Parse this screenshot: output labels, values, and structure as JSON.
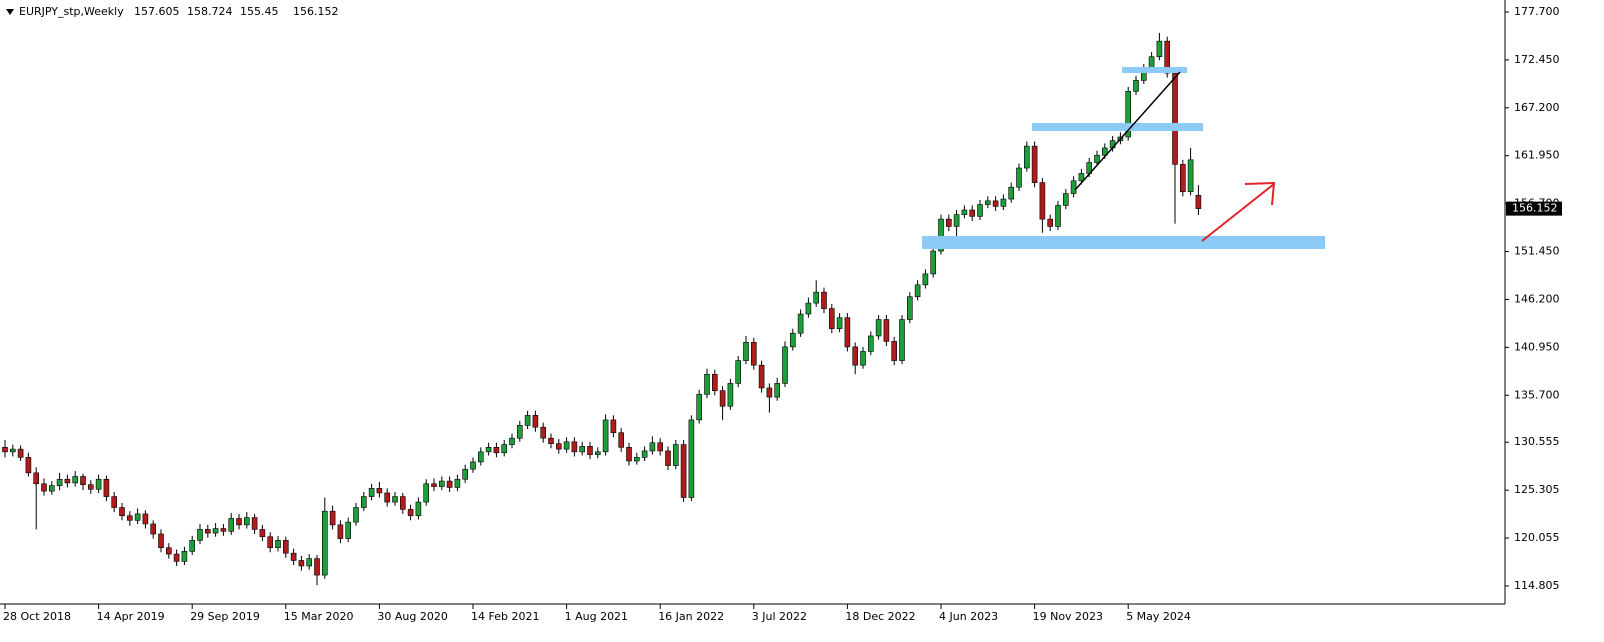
{
  "chart_data": {
    "type": "candlestick",
    "title": "EURJPY_stp,Weekly",
    "up_color": "#1f9d3a",
    "down_color": "#b01c1c",
    "ylim": [
      112.83,
      179.01
    ],
    "yticks": [
      {
        "value": 177.7,
        "label": "177.700"
      },
      {
        "value": 172.45,
        "label": "172.450"
      },
      {
        "value": 167.2,
        "label": "167.200"
      },
      {
        "value": 161.95,
        "label": "161.950"
      },
      {
        "value": 156.7,
        "label": "156.700"
      },
      {
        "value": 151.45,
        "label": "151.450"
      },
      {
        "value": 146.2,
        "label": "146.200"
      },
      {
        "value": 140.95,
        "label": "140.950"
      },
      {
        "value": 135.7,
        "label": "135.700"
      },
      {
        "value": 130.555,
        "label": "130.555"
      },
      {
        "value": 125.305,
        "label": "125.305"
      },
      {
        "value": 120.055,
        "label": "120.055"
      },
      {
        "value": 114.805,
        "label": "114.805"
      }
    ],
    "xticks": [
      {
        "value": 0,
        "label": "28 Oct 2018"
      },
      {
        "value": 12,
        "label": "14 Apr 2019"
      },
      {
        "value": 24,
        "label": "29 Sep 2019"
      },
      {
        "value": 36,
        "label": "15 Mar 2020"
      },
      {
        "value": 48,
        "label": "30 Aug 2020"
      },
      {
        "value": 60,
        "label": "14 Feb 2021"
      },
      {
        "value": 72,
        "label": "1 Aug 2021"
      },
      {
        "value": 84,
        "label": "16 Jan 2022"
      },
      {
        "value": 96,
        "label": "3 Jul 2022"
      },
      {
        "value": 108,
        "label": "18 Dec 2022"
      },
      {
        "value": 120,
        "label": "4 Jun 2023"
      },
      {
        "value": 132,
        "label": "19 Nov 2023"
      },
      {
        "value": 144,
        "label": "5 May 2024"
      }
    ],
    "candles": [
      [
        130.0,
        130.8,
        128.9,
        129.5
      ],
      [
        129.5,
        130.3,
        129.0,
        129.8
      ],
      [
        129.8,
        130.2,
        128.5,
        128.9
      ],
      [
        128.9,
        129.4,
        126.8,
        127.2
      ],
      [
        127.2,
        127.8,
        121.0,
        126.0
      ],
      [
        126.0,
        126.6,
        124.7,
        125.2
      ],
      [
        125.2,
        126.3,
        124.8,
        125.8
      ],
      [
        125.8,
        127.2,
        125.3,
        126.5
      ],
      [
        126.5,
        127.0,
        125.6,
        126.1
      ],
      [
        126.1,
        127.4,
        125.7,
        126.8
      ],
      [
        126.8,
        127.1,
        125.3,
        125.9
      ],
      [
        125.9,
        126.4,
        124.9,
        125.4
      ],
      [
        125.4,
        127.0,
        125.0,
        126.5
      ],
      [
        126.5,
        126.9,
        124.1,
        124.6
      ],
      [
        124.6,
        125.1,
        122.9,
        123.4
      ],
      [
        123.4,
        123.9,
        122.0,
        122.5
      ],
      [
        122.5,
        123.0,
        121.4,
        122.0
      ],
      [
        122.0,
        123.3,
        121.6,
        122.7
      ],
      [
        122.7,
        123.1,
        121.1,
        121.6
      ],
      [
        121.6,
        122.0,
        120.0,
        120.5
      ],
      [
        120.5,
        121.0,
        118.5,
        119.0
      ],
      [
        119.0,
        119.5,
        117.8,
        118.3
      ],
      [
        118.3,
        118.8,
        117.0,
        117.5
      ],
      [
        117.5,
        119.1,
        117.1,
        118.6
      ],
      [
        118.6,
        120.3,
        118.2,
        119.8
      ],
      [
        119.8,
        121.6,
        119.4,
        121.0
      ],
      [
        121.0,
        121.5,
        120.1,
        120.6
      ],
      [
        120.6,
        121.7,
        120.2,
        121.1
      ],
      [
        121.1,
        121.6,
        120.3,
        120.8
      ],
      [
        120.8,
        122.8,
        120.4,
        122.2
      ],
      [
        122.2,
        122.7,
        121.0,
        121.5
      ],
      [
        121.5,
        122.9,
        121.1,
        122.3
      ],
      [
        122.3,
        122.7,
        120.5,
        121.0
      ],
      [
        121.0,
        121.5,
        119.7,
        120.2
      ],
      [
        120.2,
        120.7,
        118.5,
        119.0
      ],
      [
        119.0,
        120.3,
        118.6,
        119.8
      ],
      [
        119.8,
        120.2,
        117.9,
        118.4
      ],
      [
        118.4,
        118.9,
        117.1,
        117.6
      ],
      [
        117.6,
        118.1,
        116.5,
        117.0
      ],
      [
        117.0,
        118.3,
        116.6,
        117.8
      ],
      [
        117.8,
        118.2,
        114.9,
        116.0
      ],
      [
        116.0,
        124.5,
        115.6,
        123.0
      ],
      [
        123.0,
        123.6,
        121.0,
        121.5
      ],
      [
        121.5,
        122.0,
        119.5,
        120.0
      ],
      [
        120.0,
        122.3,
        119.6,
        121.8
      ],
      [
        121.8,
        123.9,
        121.4,
        123.4
      ],
      [
        123.4,
        125.1,
        123.0,
        124.6
      ],
      [
        124.6,
        126.0,
        124.2,
        125.5
      ],
      [
        125.5,
        126.2,
        124.5,
        125.0
      ],
      [
        125.0,
        125.5,
        123.5,
        124.0
      ],
      [
        124.0,
        125.1,
        123.6,
        124.6
      ],
      [
        124.6,
        125.0,
        122.7,
        123.2
      ],
      [
        123.2,
        123.7,
        122.0,
        122.5
      ],
      [
        122.5,
        124.5,
        122.1,
        124.0
      ],
      [
        124.0,
        126.5,
        123.6,
        126.0
      ],
      [
        126.0,
        126.6,
        125.2,
        125.7
      ],
      [
        125.7,
        126.8,
        125.3,
        126.3
      ],
      [
        126.3,
        126.8,
        125.1,
        125.6
      ],
      [
        125.6,
        127.0,
        125.2,
        126.5
      ],
      [
        126.5,
        128.1,
        126.1,
        127.6
      ],
      [
        127.6,
        128.9,
        127.2,
        128.4
      ],
      [
        128.4,
        130.0,
        128.0,
        129.5
      ],
      [
        129.5,
        130.5,
        129.1,
        130.0
      ],
      [
        130.0,
        130.5,
        128.9,
        129.4
      ],
      [
        129.4,
        130.8,
        129.0,
        130.3
      ],
      [
        130.3,
        131.5,
        129.9,
        131.0
      ],
      [
        131.0,
        132.9,
        130.6,
        132.4
      ],
      [
        132.4,
        134.0,
        132.0,
        133.5
      ],
      [
        133.5,
        134.0,
        131.7,
        132.2
      ],
      [
        132.2,
        132.7,
        130.5,
        131.0
      ],
      [
        131.0,
        131.5,
        129.9,
        130.4
      ],
      [
        130.4,
        130.9,
        129.3,
        129.8
      ],
      [
        129.8,
        131.1,
        129.4,
        130.6
      ],
      [
        130.6,
        131.1,
        129.0,
        129.5
      ],
      [
        129.5,
        130.6,
        129.1,
        130.1
      ],
      [
        130.1,
        130.6,
        128.7,
        129.2
      ],
      [
        129.2,
        130.0,
        128.8,
        129.5
      ],
      [
        129.5,
        133.6,
        129.1,
        133.0
      ],
      [
        133.0,
        133.5,
        131.1,
        131.6
      ],
      [
        131.6,
        132.1,
        129.5,
        130.0
      ],
      [
        130.0,
        130.5,
        128.0,
        128.5
      ],
      [
        128.5,
        129.4,
        128.1,
        128.9
      ],
      [
        128.9,
        130.1,
        128.5,
        129.6
      ],
      [
        129.6,
        131.2,
        129.2,
        130.5
      ],
      [
        130.5,
        131.0,
        129.1,
        129.6
      ],
      [
        129.6,
        130.1,
        127.5,
        128.0
      ],
      [
        128.0,
        130.8,
        127.6,
        130.3
      ],
      [
        130.3,
        130.8,
        124.0,
        124.5
      ],
      [
        124.5,
        133.5,
        124.1,
        133.0
      ],
      [
        133.0,
        136.3,
        132.6,
        135.8
      ],
      [
        135.8,
        138.6,
        135.4,
        138.0
      ],
      [
        138.0,
        138.5,
        135.7,
        136.2
      ],
      [
        136.2,
        136.7,
        133.0,
        134.5
      ],
      [
        134.5,
        137.5,
        134.1,
        137.0
      ],
      [
        137.0,
        140.0,
        136.6,
        139.5
      ],
      [
        139.5,
        142.2,
        139.1,
        141.5
      ],
      [
        141.5,
        142.0,
        138.5,
        139.0
      ],
      [
        139.0,
        139.5,
        136.0,
        136.5
      ],
      [
        136.5,
        137.0,
        133.8,
        135.5
      ],
      [
        135.5,
        137.6,
        135.1,
        137.0
      ],
      [
        137.0,
        141.6,
        136.6,
        141.0
      ],
      [
        141.0,
        143.0,
        140.6,
        142.5
      ],
      [
        142.5,
        145.1,
        142.1,
        144.6
      ],
      [
        144.6,
        146.4,
        144.2,
        145.8
      ],
      [
        145.8,
        148.3,
        145.4,
        147.0
      ],
      [
        147.0,
        147.5,
        144.7,
        145.2
      ],
      [
        145.2,
        145.7,
        142.5,
        143.0
      ],
      [
        143.0,
        144.7,
        142.6,
        144.2
      ],
      [
        144.2,
        144.7,
        140.5,
        141.0
      ],
      [
        141.0,
        141.5,
        138.0,
        139.0
      ],
      [
        139.0,
        141.0,
        138.6,
        140.5
      ],
      [
        140.5,
        142.7,
        140.1,
        142.2
      ],
      [
        142.2,
        144.5,
        141.8,
        144.0
      ],
      [
        144.0,
        144.5,
        141.1,
        141.6
      ],
      [
        141.6,
        142.1,
        139.0,
        139.5
      ],
      [
        139.5,
        144.5,
        139.1,
        144.0
      ],
      [
        144.0,
        147.0,
        143.6,
        146.5
      ],
      [
        146.5,
        148.3,
        146.1,
        147.8
      ],
      [
        147.8,
        149.5,
        147.4,
        149.0
      ],
      [
        149.0,
        152.0,
        148.6,
        151.5
      ],
      [
        151.5,
        155.5,
        151.1,
        155.0
      ],
      [
        155.0,
        155.5,
        153.7,
        154.2
      ],
      [
        154.2,
        156.0,
        152.0,
        155.5
      ],
      [
        155.5,
        156.5,
        155.1,
        156.0
      ],
      [
        156.0,
        156.5,
        154.8,
        155.3
      ],
      [
        155.3,
        157.1,
        154.9,
        156.6
      ],
      [
        156.6,
        157.5,
        156.2,
        157.0
      ],
      [
        157.0,
        157.5,
        155.9,
        156.4
      ],
      [
        156.4,
        157.7,
        156.0,
        157.2
      ],
      [
        157.2,
        159.0,
        156.8,
        158.5
      ],
      [
        158.5,
        161.1,
        158.1,
        160.6
      ],
      [
        160.6,
        163.5,
        160.2,
        163.0
      ],
      [
        163.0,
        163.5,
        158.5,
        159.0
      ],
      [
        159.0,
        159.5,
        153.5,
        155.0
      ],
      [
        155.0,
        155.5,
        153.7,
        154.2
      ],
      [
        154.2,
        157.0,
        153.8,
        156.5
      ],
      [
        156.5,
        158.3,
        156.1,
        157.8
      ],
      [
        157.8,
        159.7,
        157.4,
        159.2
      ],
      [
        159.2,
        160.5,
        158.8,
        160.0
      ],
      [
        160.0,
        161.7,
        159.6,
        161.2
      ],
      [
        161.2,
        162.5,
        160.8,
        162.0
      ],
      [
        162.0,
        163.3,
        161.6,
        162.8
      ],
      [
        162.8,
        164.1,
        162.4,
        163.6
      ],
      [
        163.6,
        164.5,
        163.2,
        164.0
      ],
      [
        164.0,
        169.5,
        163.6,
        169.0
      ],
      [
        169.0,
        170.7,
        168.6,
        170.2
      ],
      [
        170.2,
        172.0,
        169.8,
        171.5
      ],
      [
        171.5,
        173.3,
        171.1,
        172.8
      ],
      [
        172.8,
        175.4,
        172.4,
        174.5
      ],
      [
        174.5,
        175.0,
        170.5,
        171.0
      ],
      [
        171.0,
        171.5,
        154.5,
        161.0
      ],
      [
        161.0,
        161.5,
        157.5,
        158.0
      ],
      [
        158.0,
        162.8,
        157.6,
        161.5
      ],
      [
        157.605,
        158.724,
        155.45,
        156.152
      ]
    ]
  }
}
